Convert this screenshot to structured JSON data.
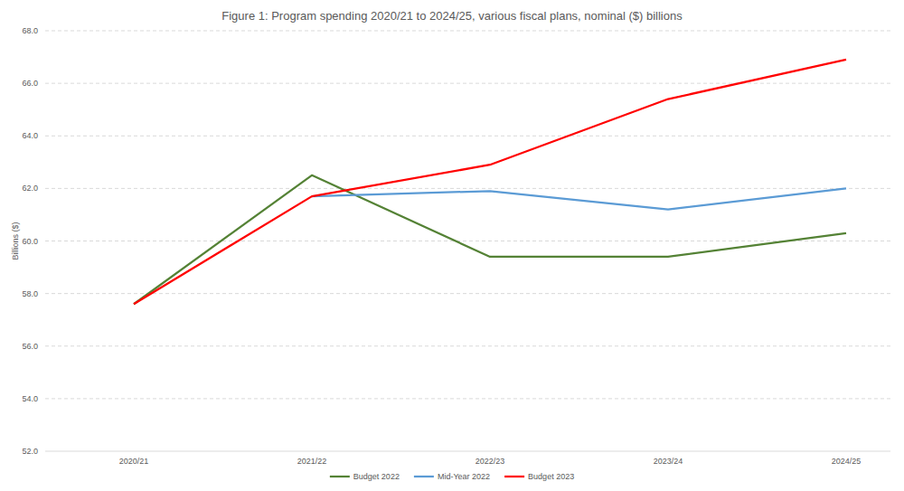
{
  "chart_data": {
    "type": "line",
    "title": "Figure 1: Program spending 2020/21 to 2024/25, various fiscal plans, nominal ($) billions",
    "y_label": "Billions ($)",
    "categories": [
      "2020/21",
      "2021/22",
      "2022/23",
      "2023/24",
      "2024/25"
    ],
    "series": [
      {
        "name": "Budget 2022",
        "color": "#548235",
        "values": [
          57.6,
          62.5,
          59.4,
          59.4,
          60.3
        ]
      },
      {
        "name": "Mid-Year 2022",
        "color": "#5b9bd5",
        "values": [
          null,
          61.7,
          61.9,
          61.2,
          62.0
        ]
      },
      {
        "name": "Budget 2023",
        "color": "#ff0000",
        "values": [
          57.6,
          61.7,
          62.9,
          65.4,
          66.9
        ]
      }
    ],
    "ylim": [
      52,
      68
    ],
    "yticks": [
      {
        "value": 52,
        "label": "52.0"
      },
      {
        "value": 54,
        "label": "54.0"
      },
      {
        "value": 56,
        "label": "56.0"
      },
      {
        "value": 58,
        "label": "58.0"
      },
      {
        "value": 60,
        "label": "60.0"
      },
      {
        "value": 62,
        "label": "62.0"
      },
      {
        "value": 64,
        "label": "64.0"
      },
      {
        "value": 66,
        "label": "66.0"
      },
      {
        "value": 68,
        "label": "68.0"
      }
    ],
    "grid": true,
    "legend": "bottom"
  }
}
